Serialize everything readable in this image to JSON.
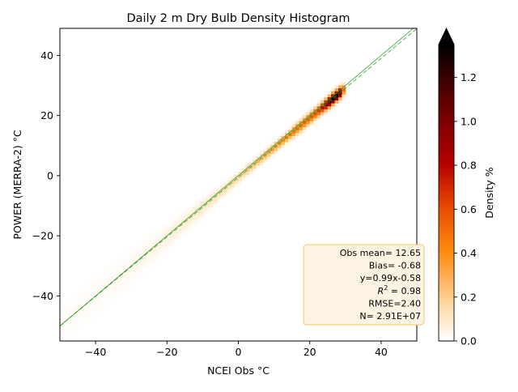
{
  "chart_data": {
    "type": "heatmap",
    "title": "Daily 2 m Dry Bulb Density Histogram",
    "xlabel": "NCEI Obs °C",
    "ylabel": "POWER (MERRA-2) °C",
    "xlim": [
      -50,
      50
    ],
    "ylim": [
      -55,
      49
    ],
    "xticks": [
      -40,
      -20,
      0,
      20,
      40
    ],
    "xtick_labels": [
      "−40",
      "−20",
      "0",
      "20",
      "40"
    ],
    "yticks": [
      -40,
      -20,
      0,
      20,
      40
    ],
    "ytick_labels": [
      "−40",
      "−20",
      "0",
      "20",
      "40"
    ],
    "density_ridge": {
      "points": [
        [
          -45,
          -45.1
        ],
        [
          -30,
          -30.2
        ],
        [
          -20,
          -20.4
        ],
        [
          -10,
          -10.5
        ],
        [
          0,
          -0.6
        ],
        [
          10,
          9.3
        ],
        [
          20,
          19.2
        ],
        [
          25,
          24.2
        ],
        [
          28,
          27.1
        ]
      ],
      "peak_x": 27,
      "peak_density": 1.35,
      "note": ""
    },
    "fit_line": {
      "slope": 0.99,
      "intercept": -0.58,
      "color": "#2ca02c",
      "style": "dashed"
    },
    "one_to_one_line": {
      "slope": 1,
      "intercept": 0,
      "color": "#2ca02c",
      "style": "solid"
    },
    "colorbar": {
      "label": "Density %",
      "min": 0.0,
      "max": 1.35,
      "extend": "max",
      "ticks": [
        0.0,
        0.2,
        0.4,
        0.6,
        0.8,
        1.0,
        1.2
      ],
      "tick_labels": [
        "0.0",
        "0.2",
        "0.4",
        "0.6",
        "0.8",
        "1.0",
        "1.2"
      ],
      "colormap": "gist_heat_r"
    },
    "stats_box": {
      "lines": [
        {
          "pre": "Obs mean= 12.65"
        },
        {
          "pre": "Bias= -0.68"
        },
        {
          "pre": "y=0.99x-0.58"
        },
        {
          "pre": "R",
          "sup": "2",
          "post": " = 0.98"
        },
        {
          "pre": "RMSE=2.40"
        },
        {
          "pre": "N= 2.91E+07"
        }
      ],
      "placement": "bottom-right",
      "background": "#fdf3e3",
      "border": "#f5c46b"
    },
    "grid": false
  }
}
